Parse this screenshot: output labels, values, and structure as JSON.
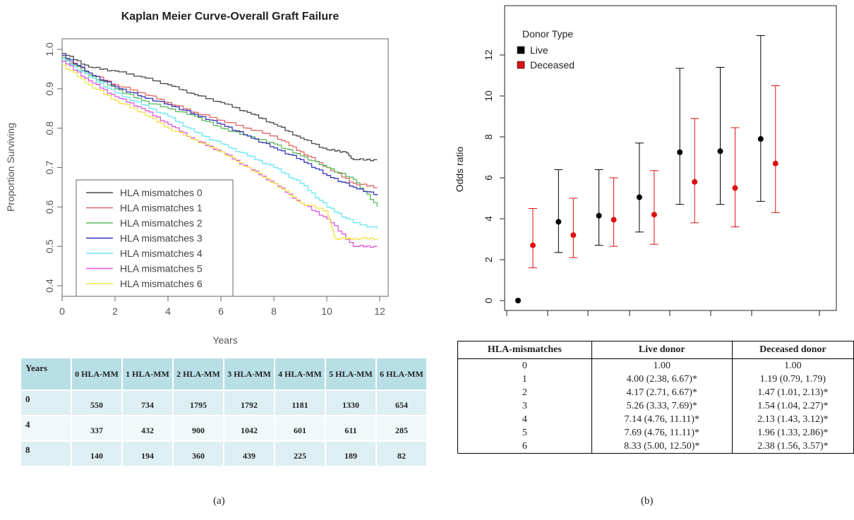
{
  "chart_data": [
    {
      "type": "line",
      "title": "Kaplan Meier Curve-Overall Graft Failure",
      "xlabel": "Years",
      "ylabel": "Proportion Surviving",
      "xlim": [
        0,
        12
      ],
      "ylim": [
        0.4,
        1.0
      ],
      "x_ticks": [
        "0",
        "2",
        "4",
        "6",
        "8",
        "10",
        "12"
      ],
      "y_ticks": [
        "0.4",
        "0.5",
        "0.6",
        "0.7",
        "0.8",
        "0.9",
        "1.0"
      ],
      "legend_position": "bottom-left",
      "series": [
        {
          "name": "HLA mismatches 0",
          "color": "#4a4a4a",
          "x": [
            0,
            1,
            2,
            3,
            4,
            5,
            6,
            7,
            8,
            9,
            10,
            10.7,
            11,
            11.9
          ],
          "y": [
            0.99,
            0.955,
            0.945,
            0.93,
            0.91,
            0.885,
            0.865,
            0.84,
            0.81,
            0.775,
            0.745,
            0.74,
            0.72,
            0.72
          ]
        },
        {
          "name": "HLA mismatches 1",
          "color": "#e06666",
          "x": [
            0,
            1,
            2,
            3,
            4,
            5,
            6,
            7,
            8,
            9,
            10,
            11,
            11.9
          ],
          "y": [
            0.98,
            0.94,
            0.91,
            0.89,
            0.865,
            0.84,
            0.82,
            0.8,
            0.78,
            0.74,
            0.7,
            0.66,
            0.65
          ]
        },
        {
          "name": "HLA mismatches 2",
          "color": "#5cb85c",
          "x": [
            0,
            1,
            2,
            3,
            4,
            5,
            6,
            7,
            8,
            9,
            10,
            11,
            11.9
          ],
          "y": [
            0.98,
            0.935,
            0.9,
            0.87,
            0.85,
            0.83,
            0.8,
            0.78,
            0.76,
            0.73,
            0.7,
            0.67,
            0.6
          ]
        },
        {
          "name": "HLA mismatches 3",
          "color": "#3333bb",
          "x": [
            0,
            1,
            2,
            3,
            4,
            5,
            6,
            7,
            8,
            9,
            10,
            11,
            11.9
          ],
          "y": [
            0.985,
            0.94,
            0.905,
            0.88,
            0.86,
            0.835,
            0.81,
            0.78,
            0.75,
            0.72,
            0.68,
            0.65,
            0.63
          ]
        },
        {
          "name": "HLA mismatches 4",
          "color": "#66e6f0",
          "x": [
            0,
            1,
            2,
            3,
            4,
            5,
            6,
            7,
            8,
            9,
            10,
            11,
            11.9
          ],
          "y": [
            0.975,
            0.93,
            0.89,
            0.86,
            0.83,
            0.79,
            0.76,
            0.73,
            0.7,
            0.66,
            0.6,
            0.56,
            0.545
          ]
        },
        {
          "name": "HLA mismatches 5",
          "color": "#dd55dd",
          "x": [
            0,
            1,
            2,
            3,
            4,
            5,
            6,
            7,
            8,
            9,
            10,
            11,
            11.9
          ],
          "y": [
            0.97,
            0.92,
            0.88,
            0.85,
            0.81,
            0.77,
            0.74,
            0.7,
            0.66,
            0.61,
            0.57,
            0.5,
            0.5
          ]
        },
        {
          "name": "HLA mismatches 6",
          "color": "#f2e24a",
          "x": [
            0,
            1,
            2,
            3,
            4,
            5,
            6,
            7,
            8,
            9,
            10,
            10.3,
            11,
            11.9
          ],
          "y": [
            0.96,
            0.91,
            0.87,
            0.84,
            0.8,
            0.77,
            0.74,
            0.7,
            0.66,
            0.61,
            0.59,
            0.52,
            0.52,
            0.52
          ]
        }
      ]
    },
    {
      "type": "scatter",
      "subtype": "error-bar",
      "ylabel": "Odds ratio",
      "xlim": [
        0,
        6
      ],
      "ylim": [
        0,
        13
      ],
      "y_ticks": [
        "0",
        "2",
        "4",
        "6",
        "8",
        "10",
        "12"
      ],
      "legend_title": "Donor Type",
      "legend_position": "top-left",
      "series": [
        {
          "name": "Live",
          "color": "#000000",
          "x": [
            0,
            1,
            2,
            3,
            4,
            5,
            6
          ],
          "y": [
            0,
            3.85,
            4.15,
            5.05,
            7.25,
            7.3,
            7.9
          ],
          "low": [
            null,
            2.35,
            2.7,
            3.35,
            4.7,
            4.7,
            4.85
          ],
          "high": [
            null,
            6.4,
            6.4,
            7.7,
            11.35,
            11.4,
            12.95
          ]
        },
        {
          "name": "Deceased",
          "color": "#dd1111",
          "x": [
            0,
            1,
            2,
            3,
            4,
            5,
            6
          ],
          "y": [
            2.7,
            3.2,
            3.95,
            4.2,
            5.8,
            5.5,
            6.7
          ],
          "low": [
            1.6,
            2.1,
            2.65,
            2.75,
            3.8,
            3.6,
            4.3
          ],
          "high": [
            4.5,
            5.0,
            6.0,
            6.35,
            8.9,
            8.45,
            10.5
          ]
        }
      ]
    }
  ],
  "risk_table": {
    "header": "Years",
    "columns": [
      "0 HLA-MM",
      "1 HLA-MM",
      "2 HLA-MM",
      "3 HLA-MM",
      "4 HLA-MM",
      "5 HLA-MM",
      "6 HLA-MM"
    ],
    "rows": [
      {
        "year": "0",
        "values": [
          "550",
          "734",
          "1795",
          "1792",
          "1181",
          "1330",
          "654"
        ]
      },
      {
        "year": "4",
        "values": [
          "337",
          "432",
          "900",
          "1042",
          "601",
          "611",
          "285"
        ]
      },
      {
        "year": "8",
        "values": [
          "140",
          "194",
          "360",
          "439",
          "225",
          "189",
          "82"
        ]
      }
    ]
  },
  "or_table": {
    "headers": [
      "HLA-mismatches",
      "Live donor",
      "Deceased donor"
    ],
    "rows": [
      [
        "0",
        "1.00",
        "1.00"
      ],
      [
        "1",
        "4.00 (2.38, 6.67)*",
        "1.19 (0.79, 1.79)"
      ],
      [
        "2",
        "4.17 (2.71, 6.67)*",
        "1.47 (1.01, 2.13)*"
      ],
      [
        "3",
        "5.26 (3.33, 7.69)*",
        "1.54 (1.04, 2.27)*"
      ],
      [
        "4",
        "7.14 (4.76, 11.11)*",
        "2.13 (1.43, 3.12)*"
      ],
      [
        "5",
        "7.69 (4.76, 11.11)*",
        "1.96 (1.33, 2.86)*"
      ],
      [
        "6",
        "8.33 (5.00, 12.50)*",
        "2.38 (1.56, 3.57)*"
      ]
    ]
  },
  "captions": {
    "a": "(a)",
    "b": "(b)"
  }
}
